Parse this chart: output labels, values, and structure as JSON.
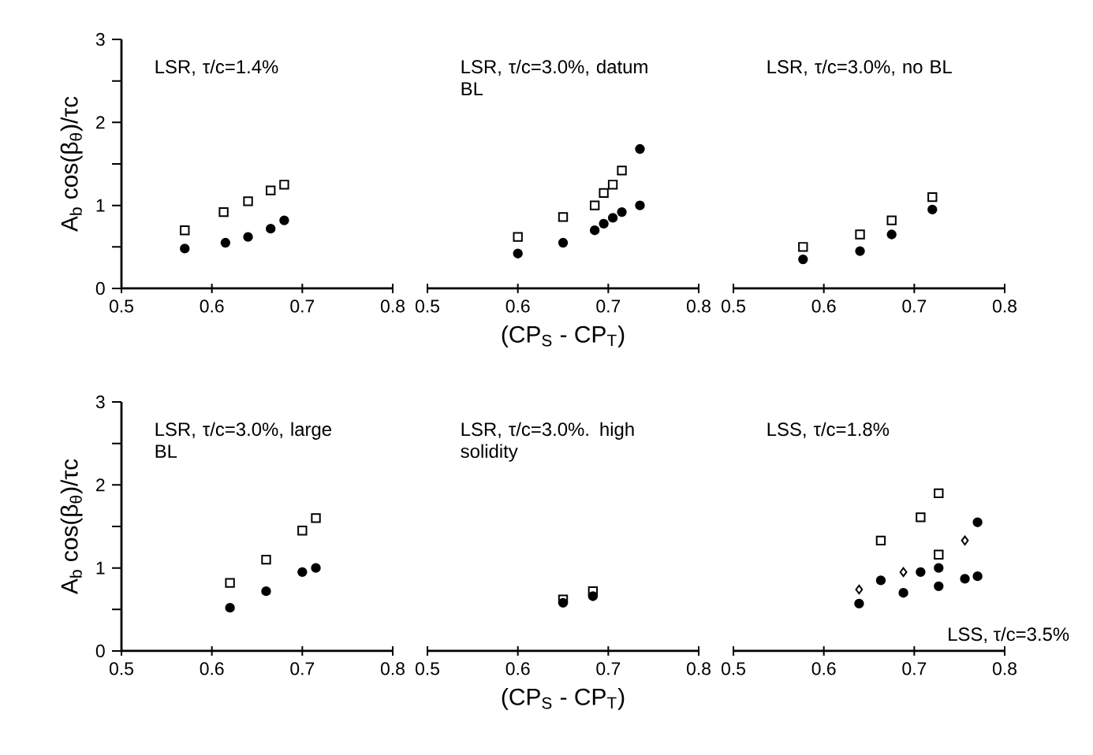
{
  "chart_data": [
    {
      "type": "scatter",
      "ylabel": "A$_{b}$ cos(β$_{θ}$)/τc",
      "annotations": [
        "LSR, τ/c=1.4%"
      ],
      "xlim": [
        0.5,
        0.8
      ],
      "ylim": [
        0,
        3
      ],
      "xticks": [
        0.5,
        0.6,
        0.7,
        0.8
      ],
      "yticks": [
        0,
        {
          "value": 0.5,
          "label": null
        },
        1,
        {
          "value": 1.5,
          "label": null
        },
        2,
        {
          "value": 2.5,
          "label": null
        },
        3
      ],
      "series": [
        {
          "color": "#000000",
          "marker": "square",
          "x": [
            0.57,
            0.613,
            0.64,
            0.665,
            0.68
          ],
          "values": [
            0.7,
            0.92,
            1.05,
            1.18,
            1.25
          ]
        },
        {
          "color": "#000000",
          "marker": "circle",
          "x": [
            0.57,
            0.615,
            0.64,
            0.665,
            0.68
          ],
          "values": [
            0.48,
            0.55,
            0.62,
            0.72,
            0.82
          ]
        }
      ]
    },
    {
      "type": "scatter",
      "xlabel": "(CP$_{S}$ - CP$_{T}$)",
      "annotations": [
        "LSR, τ/c=3.0%, datum BL"
      ],
      "xlim": [
        0.5,
        0.8
      ],
      "ylim": [
        0,
        3
      ],
      "xticks": [
        0.5,
        0.6,
        0.7,
        0.8
      ],
      "tick_labels": "x",
      "series": [
        {
          "color": "#000000",
          "marker": "square",
          "x": [
            0.6,
            0.65,
            0.685,
            0.695,
            0.705,
            0.715
          ],
          "values": [
            0.62,
            0.86,
            1.0,
            1.15,
            1.25,
            1.42
          ]
        },
        {
          "color": "#000000",
          "marker": "circle",
          "x": [
            0.6,
            0.65,
            0.685,
            0.695,
            0.705,
            0.715,
            0.735,
            0.735
          ],
          "values": [
            0.42,
            0.55,
            0.7,
            0.78,
            0.85,
            0.92,
            1.0,
            1.68
          ]
        }
      ]
    },
    {
      "type": "scatter",
      "annotations": [
        "LSR, τ/c=3.0%, no BL"
      ],
      "xlim": [
        0.5,
        0.8
      ],
      "ylim": [
        0,
        3
      ],
      "xticks": [
        0.5,
        0.6,
        0.7,
        0.8
      ],
      "tick_labels": "x",
      "series": [
        {
          "color": "#000000",
          "marker": "square",
          "x": [
            0.577,
            0.64,
            0.675,
            0.72
          ],
          "values": [
            0.5,
            0.65,
            0.82,
            1.1
          ]
        },
        {
          "color": "#000000",
          "marker": "circle",
          "x": [
            0.577,
            0.64,
            0.675,
            0.72
          ],
          "values": [
            0.35,
            0.45,
            0.65,
            0.95
          ]
        }
      ]
    },
    {
      "type": "scatter",
      "ylabel": "A$_{b}$ cos(β$_{θ}$)/τc",
      "annotations": [
        "LSR, τ/c=3.0%, large BL"
      ],
      "xlim": [
        0.5,
        0.8
      ],
      "ylim": [
        0,
        3
      ],
      "xticks": [
        0.5,
        0.6,
        0.7,
        0.8
      ],
      "yticks": [
        0,
        {
          "value": 0.5,
          "label": null
        },
        1,
        {
          "value": 1.5,
          "label": null
        },
        2,
        {
          "value": 2.5,
          "label": null
        },
        3
      ],
      "series": [
        {
          "color": "#000000",
          "marker": "square",
          "x": [
            0.62,
            0.66,
            0.7,
            0.715
          ],
          "values": [
            0.82,
            1.1,
            1.45,
            1.6
          ]
        },
        {
          "color": "#000000",
          "marker": "circle",
          "x": [
            0.62,
            0.66,
            0.7,
            0.715
          ],
          "values": [
            0.52,
            0.72,
            0.95,
            1.0
          ]
        }
      ]
    },
    {
      "type": "scatter",
      "xlabel": "(CP$_{S}$ - CP$_{T}$)",
      "annotations": [
        "LSR, τ/c=3.0%. high solidity"
      ],
      "xlim": [
        0.5,
        0.8
      ],
      "ylim": [
        0,
        3
      ],
      "xticks": [
        0.5,
        0.6,
        0.7,
        0.8
      ],
      "tick_labels": "x",
      "series": [
        {
          "color": "#000000",
          "marker": "square",
          "x": [
            0.65,
            0.683
          ],
          "values": [
            0.62,
            0.72
          ]
        },
        {
          "color": "#000000",
          "marker": "circle",
          "x": [
            0.65,
            0.683
          ],
          "values": [
            0.58,
            0.66
          ]
        }
      ]
    },
    {
      "type": "scatter",
      "annotations": [
        "LSS, τ/c=1.8%",
        "LSS, τ/c=3.5%"
      ],
      "xlim": [
        0.5,
        0.8
      ],
      "ylim": [
        0,
        3
      ],
      "xticks": [
        0.5,
        0.6,
        0.7,
        0.8
      ],
      "tick_labels": "x",
      "series": [
        {
          "color": "#000000",
          "marker": "square",
          "x": [
            0.663,
            0.707,
            0.727,
            0.727
          ],
          "values": [
            1.33,
            1.61,
            1.9,
            1.16
          ]
        },
        {
          "color": "#000000",
          "marker": "circle",
          "x": [
            0.663,
            0.707,
            0.727
          ],
          "values": [
            0.85,
            0.95,
            1.0
          ]
        },
        {
          "color": "#000000",
          "marker": "diamond",
          "x": [
            0.639,
            0.688,
            0.756
          ],
          "values": [
            0.74,
            0.95,
            1.33
          ]
        },
        {
          "color": "#000000",
          "marker": "circle",
          "x": [
            0.639,
            0.688,
            0.727,
            0.756,
            0.77,
            0.77
          ],
          "values": [
            0.57,
            0.7,
            0.78,
            0.87,
            0.9,
            1.55
          ]
        }
      ]
    }
  ]
}
